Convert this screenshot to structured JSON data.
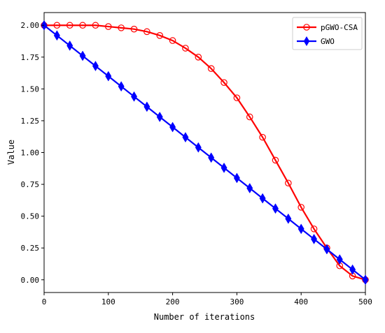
{
  "chart_data": {
    "type": "line",
    "title": "",
    "xlabel": "Number of iterations",
    "ylabel": "Value",
    "xlim": [
      0,
      500
    ],
    "ylim": [
      -0.1,
      2.1
    ],
    "xticks": [
      0,
      100,
      200,
      300,
      400,
      500
    ],
    "yticks": [
      0.0,
      0.25,
      0.5,
      0.75,
      1.0,
      1.25,
      1.5,
      1.75,
      2.0
    ],
    "xtick_labels": [
      "0",
      "100",
      "200",
      "300",
      "400",
      "500"
    ],
    "ytick_labels": [
      "0.00",
      "0.25",
      "0.50",
      "0.75",
      "1.00",
      "1.25",
      "1.50",
      "1.75",
      "2.00"
    ],
    "grid": false,
    "legend_position": "top-right",
    "series": [
      {
        "name": "pGWO-CSA",
        "color": "#ff0000",
        "marker": "circle-open",
        "x": [
          0,
          20,
          40,
          60,
          80,
          100,
          120,
          140,
          160,
          180,
          200,
          220,
          240,
          260,
          280,
          300,
          320,
          340,
          360,
          380,
          400,
          420,
          440,
          460,
          480,
          500
        ],
        "y": [
          2.0,
          2.0,
          2.0,
          2.0,
          2.0,
          1.99,
          1.98,
          1.97,
          1.95,
          1.92,
          1.88,
          1.82,
          1.75,
          1.66,
          1.55,
          1.43,
          1.28,
          1.12,
          0.94,
          0.76,
          0.57,
          0.4,
          0.25,
          0.11,
          0.03,
          0.0
        ]
      },
      {
        "name": "GWO",
        "color": "#0000ff",
        "marker": "diamond-filled",
        "x": [
          0,
          20,
          40,
          60,
          80,
          100,
          120,
          140,
          160,
          180,
          200,
          220,
          240,
          260,
          280,
          300,
          320,
          340,
          360,
          380,
          400,
          420,
          440,
          460,
          480,
          500
        ],
        "y": [
          2.0,
          1.92,
          1.84,
          1.76,
          1.68,
          1.6,
          1.52,
          1.44,
          1.36,
          1.28,
          1.2,
          1.12,
          1.04,
          0.96,
          0.88,
          0.8,
          0.72,
          0.64,
          0.56,
          0.48,
          0.4,
          0.32,
          0.24,
          0.16,
          0.08,
          0.0
        ]
      }
    ]
  }
}
